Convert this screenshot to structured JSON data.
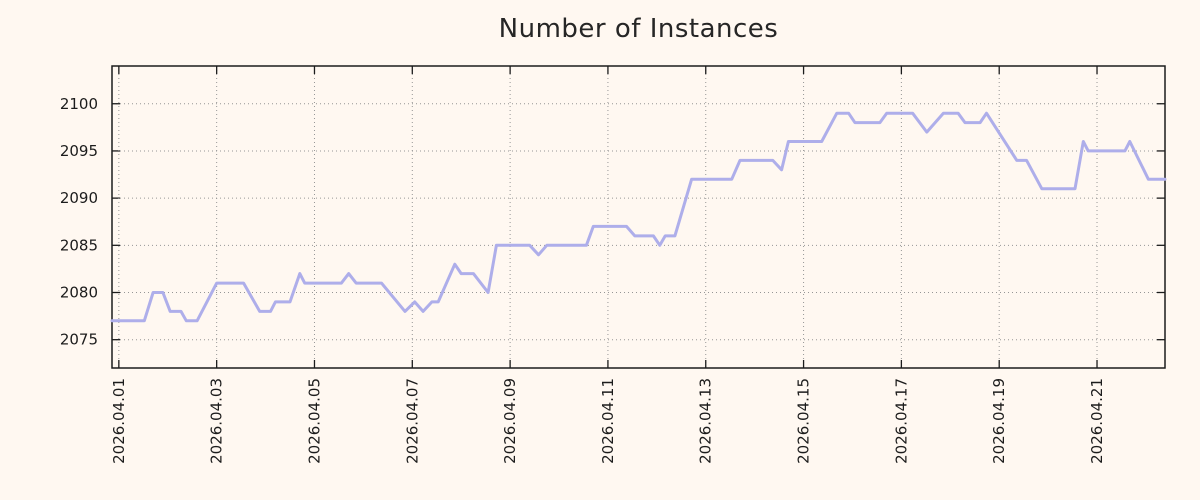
{
  "page": {
    "background_color": "#fff8f1",
    "text_color": "#1c1c1c"
  },
  "chart_data": {
    "type": "line",
    "title": "Number of Instances",
    "xlabel": "",
    "ylabel": "",
    "legend": "none",
    "grid": "dotted",
    "grid_color": "#969696",
    "frame_color": "#1c1c1c",
    "x_axis": {
      "unit": "days since 2026-04-01 00:00",
      "min_days": -0.14,
      "max_days": 21.39,
      "ticks": [
        {
          "days": 0,
          "label": "2026.04.01"
        },
        {
          "days": 2,
          "label": "2026.04.03"
        },
        {
          "days": 4,
          "label": "2026.04.05"
        },
        {
          "days": 6,
          "label": "2026.04.07"
        },
        {
          "days": 8,
          "label": "2026.04.09"
        },
        {
          "days": 10,
          "label": "2026.04.11"
        },
        {
          "days": 12,
          "label": "2026.04.13"
        },
        {
          "days": 14,
          "label": "2026.04.15"
        },
        {
          "days": 16,
          "label": "2026.04.17"
        },
        {
          "days": 18,
          "label": "2026.04.19"
        },
        {
          "days": 20,
          "label": "2026.04.21"
        }
      ]
    },
    "y_axis": {
      "min": 2072,
      "max": 2104,
      "ticks": [
        2075,
        2080,
        2085,
        2090,
        2095,
        2100
      ]
    },
    "series": [
      {
        "name": "instances",
        "color": "#aeaeea",
        "points": [
          [
            -0.14,
            2077
          ],
          [
            0.52,
            2077
          ],
          [
            0.7,
            2080
          ],
          [
            0.9,
            2080
          ],
          [
            1.05,
            2078
          ],
          [
            1.27,
            2078
          ],
          [
            1.38,
            2077
          ],
          [
            1.6,
            2077
          ],
          [
            2.0,
            2081
          ],
          [
            2.55,
            2081
          ],
          [
            2.88,
            2078
          ],
          [
            3.1,
            2078
          ],
          [
            3.2,
            2079
          ],
          [
            3.5,
            2079
          ],
          [
            3.7,
            2082
          ],
          [
            3.8,
            2081
          ],
          [
            4.55,
            2081
          ],
          [
            4.7,
            2082
          ],
          [
            4.85,
            2081
          ],
          [
            5.37,
            2081
          ],
          [
            5.85,
            2078
          ],
          [
            6.05,
            2079
          ],
          [
            6.22,
            2078
          ],
          [
            6.4,
            2079
          ],
          [
            6.53,
            2079
          ],
          [
            6.87,
            2083
          ],
          [
            7.0,
            2082
          ],
          [
            7.25,
            2082
          ],
          [
            7.55,
            2080
          ],
          [
            7.72,
            2085
          ],
          [
            8.4,
            2085
          ],
          [
            8.58,
            2084
          ],
          [
            8.75,
            2085
          ],
          [
            9.56,
            2085
          ],
          [
            9.7,
            2087
          ],
          [
            10.38,
            2087
          ],
          [
            10.55,
            2086
          ],
          [
            10.93,
            2086
          ],
          [
            11.06,
            2085
          ],
          [
            11.17,
            2086
          ],
          [
            11.37,
            2086
          ],
          [
            11.71,
            2092
          ],
          [
            12.53,
            2092
          ],
          [
            12.7,
            2094
          ],
          [
            13.37,
            2094
          ],
          [
            13.55,
            2093
          ],
          [
            13.69,
            2096
          ],
          [
            14.37,
            2096
          ],
          [
            14.68,
            2099
          ],
          [
            14.92,
            2099
          ],
          [
            15.05,
            2098
          ],
          [
            15.56,
            2098
          ],
          [
            15.7,
            2099
          ],
          [
            16.23,
            2099
          ],
          [
            16.52,
            2097
          ],
          [
            16.86,
            2099
          ],
          [
            17.16,
            2099
          ],
          [
            17.3,
            2098
          ],
          [
            17.61,
            2098
          ],
          [
            17.74,
            2099
          ],
          [
            18.36,
            2094
          ],
          [
            18.56,
            2094
          ],
          [
            18.87,
            2091
          ],
          [
            19.55,
            2091
          ],
          [
            19.72,
            2096
          ],
          [
            19.82,
            2095
          ],
          [
            20.57,
            2095
          ],
          [
            20.67,
            2096
          ],
          [
            21.05,
            2092
          ],
          [
            21.39,
            2092
          ]
        ]
      }
    ]
  },
  "layout_note": "single line chart, no legend, rotated x tick labels"
}
